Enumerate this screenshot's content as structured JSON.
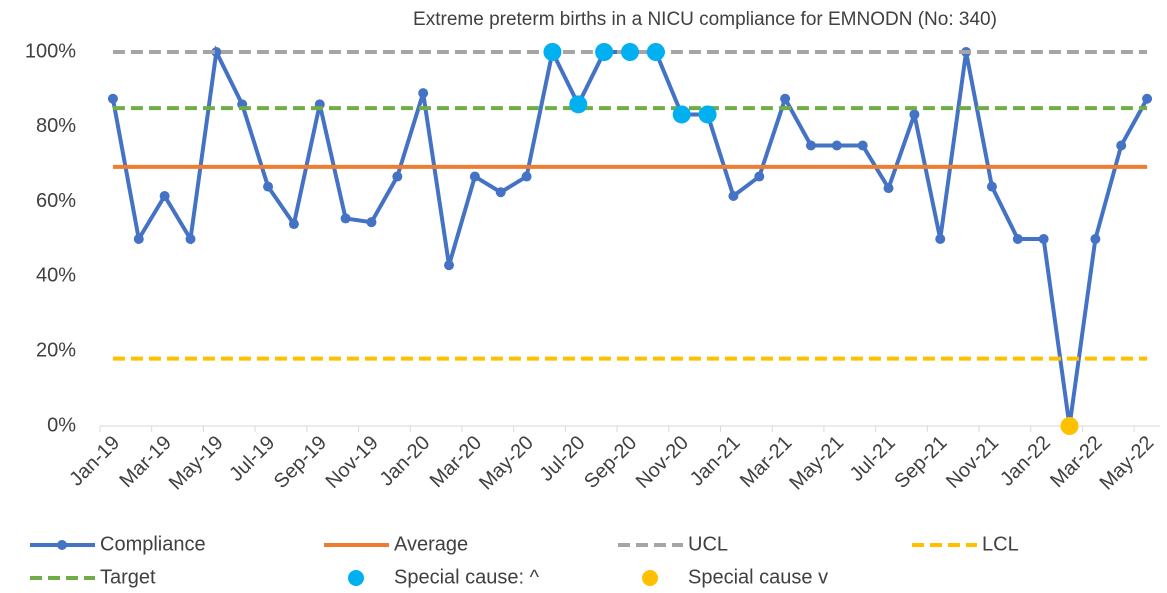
{
  "chart_data": {
    "type": "line",
    "title": "Extreme preterm births in a NICU compliance for EMNODN (No: 340)",
    "categories": [
      "Jan-19",
      null,
      "Mar-19",
      null,
      "May-19",
      null,
      "Jul-19",
      null,
      "Sep-19",
      null,
      "Nov-19",
      null,
      "Jan-20",
      null,
      "Mar-20",
      null,
      "May-20",
      null,
      "Jul-20",
      null,
      "Sep-20",
      null,
      "Nov-20",
      null,
      "Jan-21",
      null,
      "Mar-21",
      null,
      "May-21",
      null,
      "Jul-21",
      null,
      "Sep-21",
      null,
      "Nov-21",
      null,
      "Jan-22",
      null,
      "Mar-22",
      null,
      "May-22"
    ],
    "ylim": [
      0,
      100
    ],
    "yticks": [
      {
        "value": 0,
        "label": "0%"
      },
      {
        "value": 20,
        "label": "20%"
      },
      {
        "value": 40,
        "label": "40%"
      },
      {
        "value": 60,
        "label": "60%"
      },
      {
        "value": 80,
        "label": "80%"
      },
      {
        "value": 100,
        "label": "100%"
      }
    ],
    "series": [
      {
        "name": "Compliance",
        "color": "#4472c4",
        "style": "line-markers",
        "values": [
          87.5,
          50,
          61.5,
          50,
          100,
          86,
          64,
          54,
          86,
          55.5,
          54.5,
          66.7,
          89,
          43,
          66.7,
          62.5,
          66.7,
          100,
          86,
          100,
          100,
          100,
          83.3,
          83.3,
          61.5,
          66.7,
          87.5,
          75,
          75,
          75,
          63.6,
          83.3,
          50,
          100,
          64,
          50,
          50,
          0,
          50,
          75,
          87.5
        ]
      },
      {
        "name": "Average",
        "color": "#ed7d31",
        "style": "line",
        "values": [
          69.3,
          69.3,
          69.3,
          69.3,
          69.3,
          69.3,
          69.3,
          69.3,
          69.3,
          69.3,
          69.3,
          69.3,
          69.3,
          69.3,
          69.3,
          69.3,
          69.3,
          69.3,
          69.3,
          69.3,
          69.3,
          69.3,
          69.3,
          69.3,
          69.3,
          69.3,
          69.3,
          69.3,
          69.3,
          69.3,
          69.3,
          69.3,
          69.3,
          69.3,
          69.3,
          69.3,
          69.3,
          69.3,
          69.3,
          69.3,
          69.3
        ]
      },
      {
        "name": "UCL",
        "color": "#a5a5a5",
        "style": "dashed",
        "values": [
          100,
          100,
          100,
          100,
          100,
          100,
          100,
          100,
          100,
          100,
          100,
          100,
          100,
          100,
          100,
          100,
          100,
          100,
          100,
          100,
          100,
          100,
          100,
          100,
          100,
          100,
          100,
          100,
          100,
          100,
          100,
          100,
          100,
          100,
          100,
          100,
          100,
          100,
          100,
          100,
          100
        ]
      },
      {
        "name": "LCL",
        "color": "#ffc000",
        "style": "dashed",
        "values": [
          18,
          18,
          18,
          18,
          18,
          18,
          18,
          18,
          18,
          18,
          18,
          18,
          18,
          18,
          18,
          18,
          18,
          18,
          18,
          18,
          18,
          18,
          18,
          18,
          18,
          18,
          18,
          18,
          18,
          18,
          18,
          18,
          18,
          18,
          18,
          18,
          18,
          18,
          18,
          18,
          18
        ]
      },
      {
        "name": "Target",
        "color": "#70ad47",
        "style": "dashed",
        "values": [
          85,
          85,
          85,
          85,
          85,
          85,
          85,
          85,
          85,
          85,
          85,
          85,
          85,
          85,
          85,
          85,
          85,
          85,
          85,
          85,
          85,
          85,
          85,
          85,
          85,
          85,
          85,
          85,
          85,
          85,
          85,
          85,
          85,
          85,
          85,
          85,
          85,
          85,
          85,
          85,
          85
        ]
      },
      {
        "name": "Special cause: ^",
        "color": "#00b0f0",
        "style": "points",
        "values": [
          null,
          null,
          null,
          null,
          null,
          null,
          null,
          null,
          null,
          null,
          null,
          null,
          null,
          null,
          null,
          null,
          null,
          100,
          86,
          100,
          100,
          100,
          83.3,
          83.3,
          null,
          null,
          null,
          null,
          null,
          null,
          null,
          null,
          null,
          null,
          null,
          null,
          null,
          null,
          null,
          null,
          null
        ]
      },
      {
        "name": "Special cause v",
        "color": "#ffc000",
        "style": "points",
        "values": [
          null,
          null,
          null,
          null,
          null,
          null,
          null,
          null,
          null,
          null,
          null,
          null,
          null,
          null,
          null,
          null,
          null,
          null,
          null,
          null,
          null,
          null,
          null,
          null,
          null,
          null,
          null,
          null,
          null,
          null,
          null,
          null,
          null,
          null,
          null,
          null,
          null,
          0,
          null,
          null,
          null
        ]
      }
    ]
  }
}
